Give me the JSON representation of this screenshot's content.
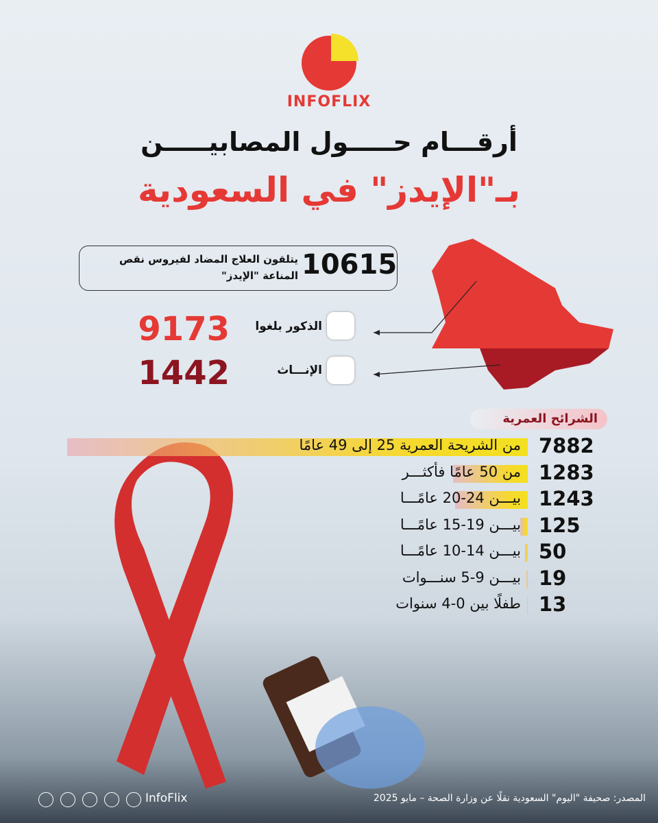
{
  "logo": "INFOFLIX",
  "title": {
    "line1": "أرقـــام حـــــول المصابيـــــن",
    "line2": "بـ\"الإيدز\" في السعودية"
  },
  "total": {
    "value": 10615,
    "text": "يتلقون العلاج المضاد لفيروس نقص المناعة \"الإيدز\""
  },
  "males": {
    "label": "الذكور بلغوا",
    "value": 9173
  },
  "females": {
    "label": "الإنـــاث",
    "value": 1442
  },
  "age_heading": "الشرائح العمرية",
  "age_groups": [
    {
      "label": "من الشريحة العمرية 25 إلى 49 عامًا",
      "value": 7882
    },
    {
      "label": "من 50 عامًا فأكثـــر",
      "value": 1283
    },
    {
      "label": "بيـــن 24-20 عامًـــا",
      "value": 1243
    },
    {
      "label": "بيـــن 19-15 عامًـــا",
      "value": 125
    },
    {
      "label": "بيـــن 14-10 عامًـــا",
      "value": 50
    },
    {
      "label": "بيـــن 9-5 سنـــوات",
      "value": 19
    },
    {
      "label": "طفلًا بين 0-4 سنوات",
      "value": 13
    }
  ],
  "footer": {
    "handle": "InfoFlix",
    "source": "المصدر: صحيفة \"اليوم\" السعودية نقلًا عن وزارة الصحة – مايو 2025"
  }
}
